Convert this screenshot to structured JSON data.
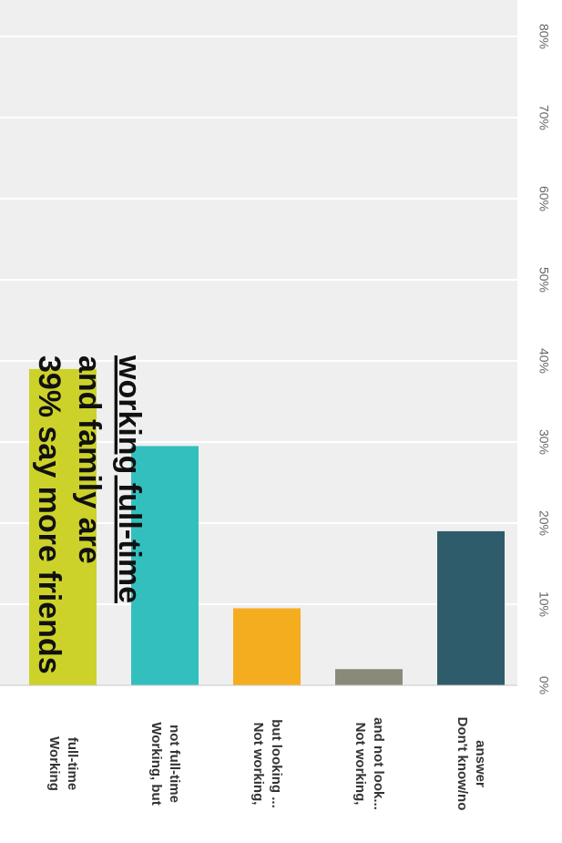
{
  "chart_data": {
    "type": "bar",
    "orientation": "horizontal, rendered rotated 90 degrees clockwise",
    "categories": [
      [
        "Working",
        "full-time"
      ],
      [
        "Working, but",
        "not full-time"
      ],
      [
        "Not working,",
        "but looking ..."
      ],
      [
        "Not working,",
        "and not look..."
      ],
      [
        "Don't know/no",
        "answer"
      ]
    ],
    "values": [
      39,
      29.5,
      9.5,
      2,
      19
    ],
    "colors": [
      "#cdd22a",
      "#34bfbf",
      "#f5ad20",
      "#8a8a7a",
      "#2e5c6a"
    ],
    "xlim": [
      0,
      80
    ],
    "ticks": [
      "0%",
      "10%",
      "20%",
      "30%",
      "40%",
      "50%",
      "60%",
      "70%",
      "80%"
    ],
    "tick_values": [
      0,
      10,
      20,
      30,
      40,
      50,
      60,
      70,
      80
    ],
    "grid": true,
    "title": "",
    "annotation": {
      "lines": [
        "39% say more friends",
        "and family are",
        "working full-time"
      ],
      "underlined_line": 2
    }
  }
}
